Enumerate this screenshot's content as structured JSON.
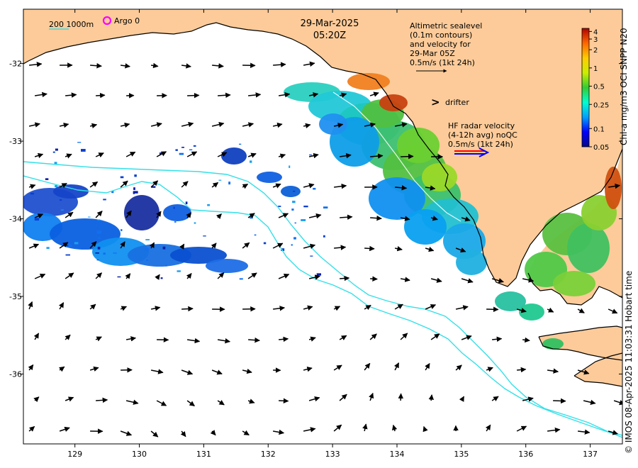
{
  "header": {
    "date": "29-Mar-2025",
    "time": "05:20Z"
  },
  "argo": {
    "label": "Argo 0",
    "color": "#ff00ff"
  },
  "depth_contours": {
    "label": "200  1000m",
    "color": "#33e0e8"
  },
  "altimetry_legend": {
    "lines": [
      "Altimetric sealevel",
      "(0.1m contours)",
      "and velocity for",
      "29-Mar 05Z",
      "0.5m/s (1kt 24h)"
    ]
  },
  "drifter": {
    "label": "drifter",
    "glyph": ">",
    "color": "#ff00ff"
  },
  "hf_radar_legend": {
    "lines": [
      "HF radar velocity",
      "(4-12h avg) noQC",
      "0.5m/s (1kt 24h)"
    ],
    "colors": [
      "#ff0000",
      "#0000ff"
    ]
  },
  "colorbar": {
    "title": "Chl-a mg/m3 OCI SNPP N20",
    "ticks": [
      "4",
      "3",
      "2",
      "1",
      "0.5",
      "0.25",
      "0.1",
      "0.05"
    ],
    "tick_values": [
      4,
      3,
      2,
      1,
      0.5,
      0.25,
      0.1,
      0.05
    ],
    "range": [
      0.05,
      4.5
    ],
    "scale": "log",
    "stops": [
      "#08088a",
      "#0000ff",
      "#00a0ff",
      "#00ffd0",
      "#33cc33",
      "#ccee00",
      "#ffcc00",
      "#ff6600",
      "#b00000"
    ]
  },
  "credit": "© IMOS 08-Apr-2025 11:03:31 Hobart time",
  "axes": {
    "x_ticks": [
      129,
      130,
      131,
      132,
      133,
      134,
      135,
      136,
      137
    ],
    "y_ticks": [
      -32,
      -33,
      -34,
      -35,
      -36
    ],
    "x_tick_labels": [
      "129",
      "130",
      "131",
      "132",
      "133",
      "134",
      "135",
      "136",
      "137"
    ],
    "y_tick_labels": [
      "-32",
      "-33",
      "-34",
      "-35",
      "-36"
    ],
    "lon_range": [
      128.2,
      137.5
    ],
    "lat_range": [
      -36.9,
      -31.3
    ]
  },
  "colors": {
    "land": "#fccb99",
    "coast": "#000000",
    "arrows": "#000000"
  }
}
